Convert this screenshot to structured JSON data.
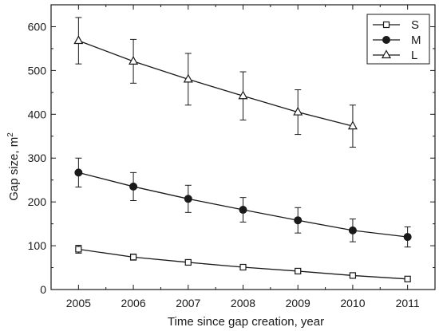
{
  "chart_data": {
    "type": "line",
    "title": "",
    "xlabel": "Time since gap creation, year",
    "ylabel": "Gap size, m",
    "ylabel_superscript": "2",
    "x": [
      2005,
      2006,
      2007,
      2008,
      2009,
      2010,
      2011
    ],
    "x_tick_labels": [
      "2005",
      "2006",
      "2007",
      "2008",
      "2009",
      "2010",
      "2011"
    ],
    "xlim": [
      2004.5,
      2011.5
    ],
    "ylim": [
      0,
      650
    ],
    "y_ticks": [
      0,
      100,
      200,
      300,
      400,
      500,
      600
    ],
    "y_tick_labels": [
      "0",
      "100",
      "200",
      "300",
      "400",
      "500",
      "600"
    ],
    "grid": false,
    "legend_position": "top-right",
    "series": [
      {
        "name": "S",
        "marker": "open-square",
        "x": [
          2005,
          2006,
          2007,
          2008,
          2009,
          2010,
          2011
        ],
        "values": [
          92,
          74,
          62,
          51,
          42,
          32,
          24
        ],
        "errors": [
          9,
          7,
          6,
          5,
          4,
          3,
          2
        ]
      },
      {
        "name": "M",
        "marker": "filled-circle",
        "x": [
          2005,
          2006,
          2007,
          2008,
          2009,
          2010,
          2011
        ],
        "values": [
          267,
          235,
          207,
          182,
          158,
          135,
          120
        ],
        "errors": [
          33,
          32,
          31,
          28,
          29,
          26,
          23
        ]
      },
      {
        "name": "L",
        "marker": "open-triangle",
        "x": [
          2005,
          2006,
          2007,
          2008,
          2009,
          2010
        ],
        "values": [
          568,
          521,
          480,
          442,
          405,
          373
        ],
        "errors": [
          53,
          50,
          59,
          55,
          51,
          48
        ]
      }
    ]
  }
}
